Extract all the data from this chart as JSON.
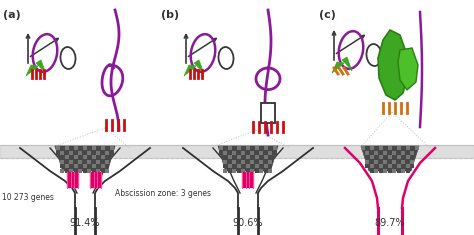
{
  "bg_color": "#ffffff",
  "panel_labels": [
    "(a)",
    "(b)",
    "(c)"
  ],
  "percentages": [
    "91.4%",
    "90.6%",
    "89.7%"
  ],
  "label_10273": "10 273 genes",
  "label_az": "Abscission zone: 3 genes",
  "purple": "#8b1a9a",
  "dark_purple": "#6b006b",
  "red": "#cc1010",
  "hot_pink": "#e0006a",
  "green": "#3da622",
  "green2": "#4dbf28",
  "orange": "#d07010",
  "dark_gray": "#383838",
  "mid_gray": "#808080",
  "light_gray": "#c0c0c0",
  "stem_color": "#303030",
  "tissue_dark": "#484848",
  "tissue_light": "#787878",
  "ground_gray": "#c8c8c8"
}
